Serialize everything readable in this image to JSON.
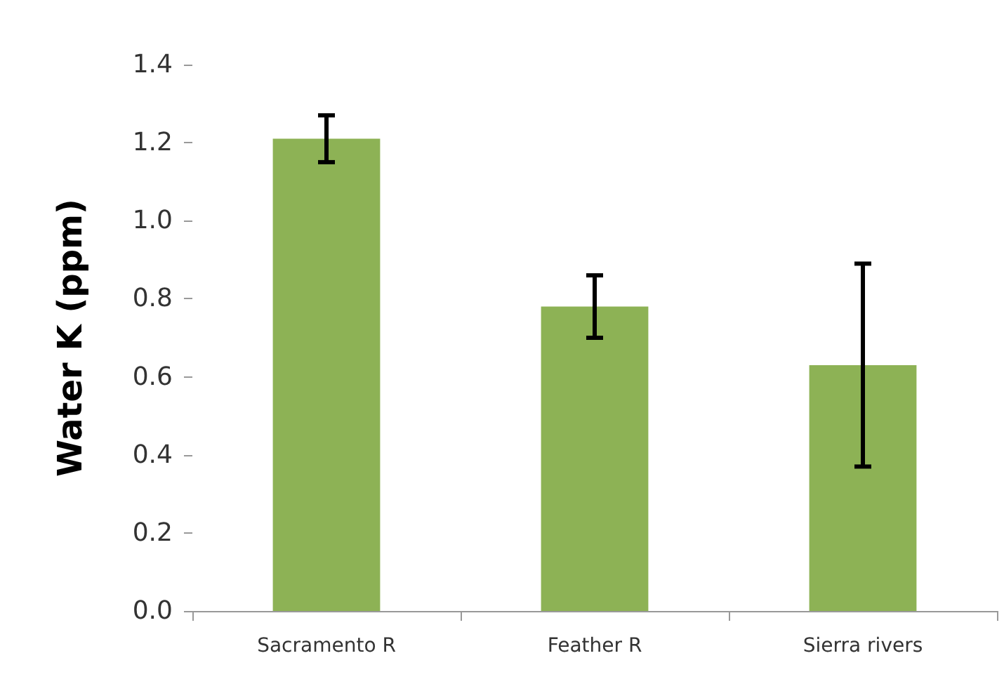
{
  "chart_data": {
    "type": "bar",
    "ylabel": "Water K (ppm)",
    "categories": [
      "Sacramento R",
      "Feather R",
      "Sierra rivers"
    ],
    "values": [
      1.21,
      0.78,
      0.63
    ],
    "errors": [
      0.06,
      0.08,
      0.26
    ],
    "color": "#8db255",
    "ylim": [
      0,
      1.4
    ],
    "yticks": [
      {
        "value": 0,
        "label": "0.0"
      },
      0.2,
      0.4,
      0.6,
      0.8,
      {
        "value": 1,
        "label": "1.0"
      },
      1.2,
      1.4
    ],
    "grid": false
  }
}
